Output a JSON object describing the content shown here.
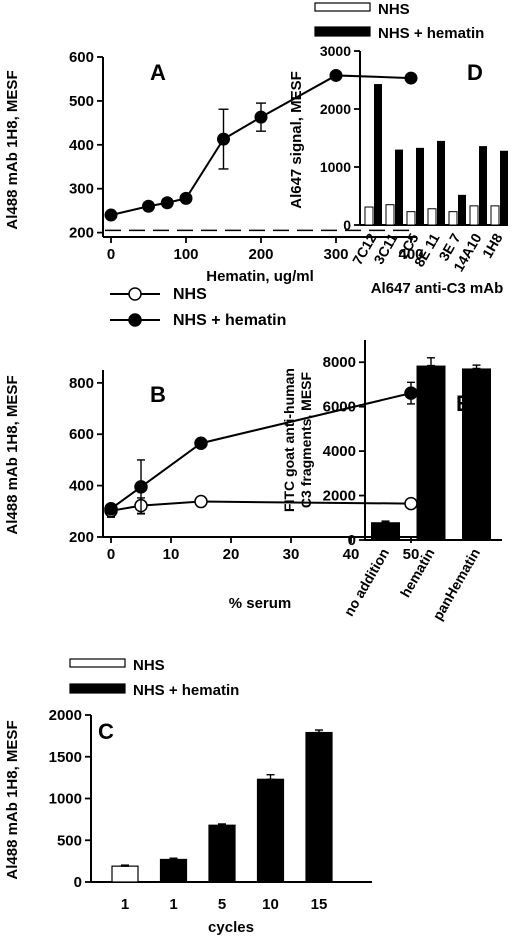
{
  "chart_data": [
    {
      "panel": "A",
      "type": "line",
      "xlabel": "Hematin, ug/ml",
      "ylabel": "Al488 mAb 1H8, MESF",
      "xlim": [
        0,
        400
      ],
      "ylim": [
        190,
        600
      ],
      "xticks": [
        0,
        100,
        200,
        300,
        400
      ],
      "yticks": [
        200,
        300,
        400,
        500,
        600
      ],
      "baseline": 205,
      "series": [
        {
          "x": [
            0,
            50,
            75,
            100,
            150,
            200,
            300,
            400
          ],
          "y": [
            240,
            260,
            268,
            278,
            413,
            463,
            558,
            552
          ],
          "err": [
            0,
            0,
            0,
            0,
            68,
            32,
            0,
            0
          ]
        }
      ]
    },
    {
      "panel": "B",
      "type": "line",
      "xlabel": "% serum",
      "ylabel": "Al488 mAb 1H8, MESF",
      "xlim": [
        0,
        50
      ],
      "ylim": [
        200,
        850
      ],
      "xticks": [
        0,
        10,
        20,
        30,
        40,
        50
      ],
      "yticks": [
        200,
        400,
        600,
        800
      ],
      "legend": [
        "NHS",
        "NHS + hematin"
      ],
      "series": [
        {
          "name": "NHS",
          "marker": "open",
          "x": [
            0,
            5,
            15,
            50
          ],
          "y": [
            302,
            322,
            338,
            330
          ],
          "err": [
            25,
            30,
            10,
            10
          ]
        },
        {
          "name": "NHS + hematin",
          "marker": "filled",
          "x": [
            0,
            5,
            15,
            50
          ],
          "y": [
            310,
            395,
            565,
            760
          ],
          "err": [
            18,
            105,
            15,
            42
          ]
        }
      ]
    },
    {
      "panel": "C",
      "type": "bar",
      "xlabel": "cycles",
      "ylabel": "Al488 mAb 1H8, MESF",
      "ylim": [
        0,
        2000
      ],
      "yticks": [
        0,
        500,
        1000,
        1500,
        2000
      ],
      "legend": [
        "NHS",
        "NHS + hematin"
      ],
      "categories": [
        "1",
        "1",
        "5",
        "10",
        "15"
      ],
      "values": [
        190,
        270,
        680,
        1230,
        1790
      ],
      "err": [
        12,
        15,
        15,
        55,
        30
      ],
      "groups": [
        "NHS",
        "NHS + hematin",
        "NHS + hematin",
        "NHS + hematin",
        "NHS + hematin"
      ]
    },
    {
      "panel": "D",
      "type": "bar",
      "xlabel": "Al647 anti-C3 mAb",
      "ylabel": "Al647 signal, MESF",
      "ylim": [
        0,
        3000
      ],
      "yticks": [
        0,
        1000,
        2000,
        3000
      ],
      "legend": [
        "NHS",
        "NHS + hematin"
      ],
      "categories": [
        "7C12",
        "3C11",
        "2C5",
        "8E 11",
        "3E 7",
        "14A10",
        "1H8"
      ],
      "series": [
        {
          "name": "NHS",
          "values": [
            310,
            350,
            230,
            280,
            230,
            330,
            330
          ]
        },
        {
          "name": "NHS + hematin",
          "values": [
            2430,
            1300,
            1330,
            1450,
            520,
            1360,
            1280
          ]
        }
      ]
    },
    {
      "panel": "E",
      "type": "bar",
      "ylabel_lines": [
        "FITC goat anti-human",
        "C3 fragments, MESF"
      ],
      "ylim": [
        0,
        9000
      ],
      "yticks": [
        0,
        2000,
        4000,
        6000,
        8000
      ],
      "categories": [
        "no addition",
        "hematin",
        "panHematin"
      ],
      "values": [
        800,
        7850,
        7720
      ],
      "err": [
        50,
        350,
        150
      ]
    }
  ],
  "colors": {
    "filled": "#000000",
    "open": "#ffffff",
    "axis": "#000000"
  }
}
